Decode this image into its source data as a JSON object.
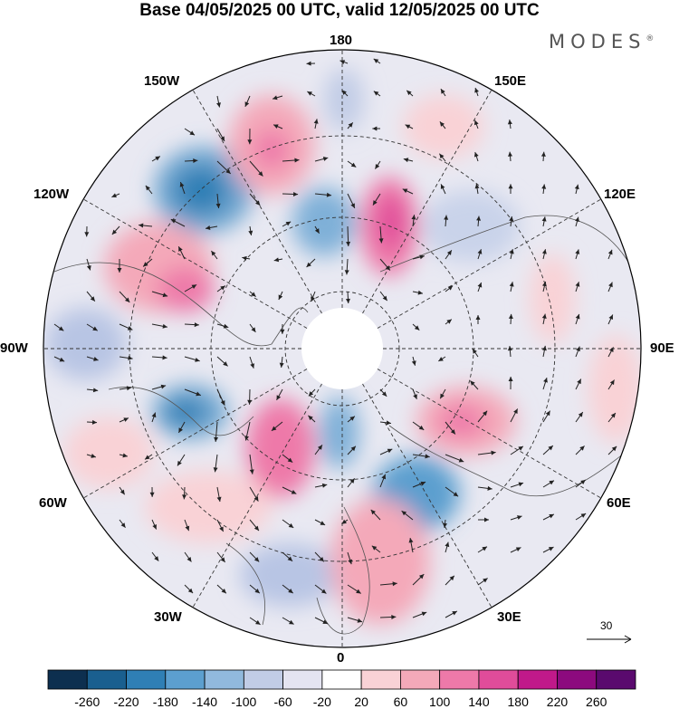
{
  "title": "Base 04/05/2025 00 UTC, valid 12/05/2025 00 UTC",
  "brand": "MODES",
  "brand_mark": "®",
  "map": {
    "projection": "north-polar-stereographic",
    "longitude_labels": {
      "top": "180",
      "top_left": "150W",
      "top_right": "150E",
      "upper_left": "120W",
      "upper_right": "120E",
      "left": "90W",
      "right": "90E",
      "lower_left": "60W",
      "lower_right": "60E",
      "bottom_left": "30W",
      "bottom_right": "30E",
      "bottom": "0"
    },
    "reference_vector_label": "30",
    "field": "anomaly shading with wind vectors",
    "grid": true
  },
  "colorbar": {
    "tick_labels": [
      "-260",
      "-220",
      "-180",
      "-140",
      "-100",
      "-60",
      "-20",
      "20",
      "60",
      "100",
      "140",
      "180",
      "220",
      "260"
    ],
    "colors": [
      "#0d2f4f",
      "#1a5f8f",
      "#2f7fb5",
      "#5c9fcf",
      "#91b9dd",
      "#c1cce6",
      "#e4e4f1",
      "#ffffff",
      "#f9d2d6",
      "#f4a9b9",
      "#ee79a9",
      "#e04c9a",
      "#c0198a",
      "#8c0a7e",
      "#5a0a6e"
    ]
  }
}
